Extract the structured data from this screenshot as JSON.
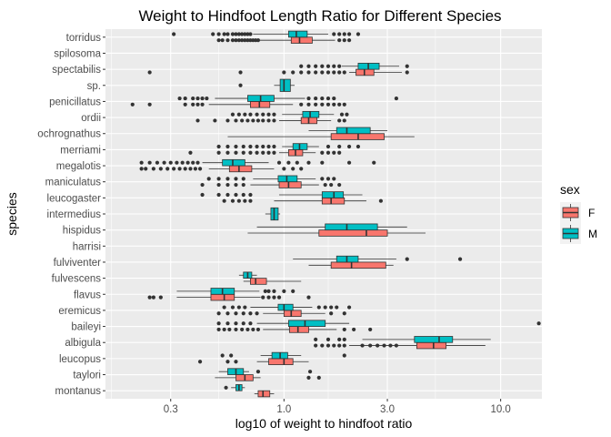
{
  "chart_data": {
    "type": "boxplot",
    "orientation": "horizontal",
    "title": "Weight to Hindfoot Length Ratio for Different Species",
    "xlabel": "log10 of weight to hindfoot ratio",
    "ylabel": "species",
    "x_scale": "log10",
    "xlim": [
      0.15,
      15.5
    ],
    "x_ticks": [
      0.3,
      1.0,
      3.0,
      10.0
    ],
    "x_tick_labels": [
      "0.3",
      "1.0",
      "3.0",
      "10.0"
    ],
    "grid": true,
    "legend": {
      "title": "sex",
      "position": "right"
    },
    "series": [
      {
        "name": "F",
        "color": "#F8766D"
      },
      {
        "name": "M",
        "color": "#00BFC4"
      }
    ],
    "categories": [
      "torridus",
      "spilosoma",
      "spectabilis",
      "sp.",
      "penicillatus",
      "ordii",
      "ochrognathus",
      "merriami",
      "megalotis",
      "maniculatus",
      "leucogaster",
      "intermedius",
      "hispidus",
      "harrisi",
      "fulviventer",
      "fulvescens",
      "flavus",
      "eremicus",
      "baileyi",
      "albigula",
      "leucopus",
      "taylori",
      "montanus"
    ],
    "boxes": [
      {
        "species": "torridus",
        "sex": "F",
        "lw": 0.75,
        "q1": 1.08,
        "med": 1.18,
        "q3": 1.35,
        "uw": 1.72,
        "out": [
          0.5,
          0.52,
          0.55,
          0.58,
          0.6,
          0.62,
          0.64,
          0.66,
          0.68,
          0.7,
          0.72,
          0.74,
          0.76,
          1.8,
          1.9,
          2.0
        ]
      },
      {
        "species": "torridus",
        "sex": "M",
        "lw": 0.72,
        "q1": 1.05,
        "med": 1.14,
        "q3": 1.28,
        "uw": 1.6,
        "out": [
          0.31,
          0.47,
          0.5,
          0.53,
          0.55,
          0.58,
          0.6,
          0.62,
          0.64,
          0.66,
          0.68,
          0.7,
          1.7,
          1.8,
          1.9,
          2.0,
          2.2
        ]
      },
      {
        "species": "spectabilis",
        "sex": "F",
        "lw": 2.0,
        "q1": 2.15,
        "med": 2.35,
        "q3": 2.6,
        "uw": 3.5,
        "out": [
          0.24,
          0.63,
          1.0,
          1.1,
          1.2,
          1.3,
          1.4,
          1.5,
          1.6,
          1.7,
          1.8,
          1.9,
          3.7
        ]
      },
      {
        "species": "spectabilis",
        "sex": "M",
        "lw": 1.85,
        "q1": 2.2,
        "med": 2.45,
        "q3": 2.75,
        "uw": 3.4,
        "out": [
          1.2,
          1.3,
          1.4,
          1.5,
          1.6,
          1.7,
          1.8,
          3.7
        ]
      },
      {
        "species": "sp.",
        "sex": "M",
        "lw": 0.9,
        "q1": 0.96,
        "med": 1.0,
        "q3": 1.07,
        "uw": 1.12,
        "out": [
          0.63
        ]
      },
      {
        "species": "penicillatus",
        "sex": "F",
        "lw": 0.45,
        "q1": 0.7,
        "med": 0.77,
        "q3": 0.86,
        "uw": 1.1,
        "out": [
          0.2,
          0.24,
          0.35,
          0.38,
          0.4,
          0.42,
          1.2,
          1.3,
          1.4,
          1.5,
          1.6,
          1.7,
          1.8,
          1.9
        ]
      },
      {
        "species": "penicillatus",
        "sex": "M",
        "lw": 0.48,
        "q1": 0.68,
        "med": 0.78,
        "q3": 0.9,
        "uw": 1.25,
        "out": [
          0.33,
          0.35,
          0.38,
          0.4,
          0.42,
          0.44,
          1.3,
          1.4,
          1.5,
          1.6,
          1.7,
          3.3
        ]
      },
      {
        "species": "ordii",
        "sex": "F",
        "lw": 0.95,
        "q1": 1.2,
        "med": 1.3,
        "q3": 1.42,
        "uw": 1.65,
        "out": [
          0.4,
          0.48,
          0.55,
          0.6,
          0.64,
          0.68,
          0.72,
          0.76,
          0.8,
          0.85,
          0.9,
          1.8,
          1.9
        ]
      },
      {
        "species": "ordii",
        "sex": "M",
        "lw": 0.98,
        "q1": 1.22,
        "med": 1.32,
        "q3": 1.45,
        "uw": 1.7,
        "out": [
          0.58,
          0.62,
          0.66,
          0.7,
          0.75,
          0.8,
          0.85,
          0.9,
          1.85,
          1.95
        ]
      },
      {
        "species": "ochrognathus",
        "sex": "F",
        "lw": 0.55,
        "q1": 1.65,
        "med": 2.2,
        "q3": 2.9,
        "uw": 4.0,
        "out": []
      },
      {
        "species": "ochrognathus",
        "sex": "M",
        "lw": 1.3,
        "q1": 1.75,
        "med": 1.95,
        "q3": 2.5,
        "uw": 3.0,
        "out": []
      },
      {
        "species": "merriami",
        "sex": "F",
        "lw": 0.95,
        "q1": 1.05,
        "med": 1.13,
        "q3": 1.22,
        "uw": 1.4,
        "out": [
          0.37,
          0.5,
          0.55,
          0.6,
          0.65,
          0.7,
          0.75,
          0.8,
          0.85,
          0.9,
          1.5,
          1.6,
          1.7,
          1.8
        ]
      },
      {
        "species": "merriami",
        "sex": "M",
        "lw": 0.98,
        "q1": 1.1,
        "med": 1.18,
        "q3": 1.28,
        "uw": 1.45,
        "out": [
          0.5,
          0.55,
          0.6,
          0.65,
          0.7,
          0.75,
          0.8,
          0.85,
          0.9,
          1.6,
          1.8,
          2.0,
          2.2
        ]
      },
      {
        "species": "megalotis",
        "sex": "F",
        "lw": 0.45,
        "q1": 0.56,
        "med": 0.62,
        "q3": 0.71,
        "uw": 0.9,
        "out": [
          0.22,
          0.23,
          0.25,
          0.27,
          0.29,
          0.31,
          0.33,
          0.35,
          0.37,
          0.39,
          0.41,
          1.0,
          1.1,
          1.2
        ]
      },
      {
        "species": "megalotis",
        "sex": "M",
        "lw": 0.42,
        "q1": 0.52,
        "med": 0.58,
        "q3": 0.66,
        "uw": 0.85,
        "out": [
          0.22,
          0.24,
          0.26,
          0.28,
          0.3,
          0.32,
          0.34,
          0.36,
          0.38,
          0.4,
          0.95,
          1.05,
          1.15,
          1.3,
          1.5,
          2.0,
          2.6
        ]
      },
      {
        "species": "maniculatus",
        "sex": "F",
        "lw": 0.7,
        "q1": 0.95,
        "med": 1.05,
        "q3": 1.2,
        "uw": 1.45,
        "out": [
          0.42,
          0.5,
          0.55,
          0.6,
          0.65,
          1.55,
          1.65,
          1.8
        ]
      },
      {
        "species": "maniculatus",
        "sex": "M",
        "lw": 0.72,
        "q1": 0.94,
        "med": 1.03,
        "q3": 1.15,
        "uw": 1.4,
        "out": [
          0.45,
          0.5,
          0.55,
          0.6,
          0.65,
          1.5,
          1.6,
          1.7
        ]
      },
      {
        "species": "leucogaster",
        "sex": "F",
        "lw": 0.9,
        "q1": 1.5,
        "med": 1.65,
        "q3": 1.9,
        "uw": 2.4,
        "out": [
          0.53,
          0.58,
          0.62,
          0.66,
          0.7,
          2.8
        ]
      },
      {
        "species": "leucogaster",
        "sex": "M",
        "lw": 0.95,
        "q1": 1.5,
        "med": 1.7,
        "q3": 1.88,
        "uw": 2.3,
        "out": [
          0.42,
          0.5,
          0.55,
          0.6,
          0.65,
          0.7
        ]
      },
      {
        "species": "intermedius",
        "sex": "M",
        "lw": 0.82,
        "q1": 0.87,
        "med": 0.9,
        "q3": 0.94,
        "uw": 0.96,
        "out": []
      },
      {
        "species": "hispidus",
        "sex": "F",
        "lw": 0.68,
        "q1": 1.45,
        "med": 2.4,
        "q3": 3.0,
        "uw": 4.5,
        "out": []
      },
      {
        "species": "hispidus",
        "sex": "M",
        "lw": 0.75,
        "q1": 1.55,
        "med": 1.95,
        "q3": 2.7,
        "uw": 3.7,
        "out": []
      },
      {
        "species": "fulviventer",
        "sex": "F",
        "lw": 1.3,
        "q1": 1.65,
        "med": 2.05,
        "q3": 2.95,
        "uw": 3.2,
        "out": []
      },
      {
        "species": "fulviventer",
        "sex": "M",
        "lw": 1.1,
        "q1": 1.75,
        "med": 1.95,
        "q3": 2.2,
        "uw": 3.3,
        "out": [
          3.7,
          6.5
        ]
      },
      {
        "species": "fulvescens",
        "sex": "F",
        "lw": 0.65,
        "q1": 0.7,
        "med": 0.74,
        "q3": 0.83,
        "uw": 1.2,
        "out": []
      },
      {
        "species": "fulvescens",
        "sex": "M",
        "lw": 0.62,
        "q1": 0.65,
        "med": 0.68,
        "q3": 0.71,
        "uw": 0.75,
        "out": []
      },
      {
        "species": "flavus",
        "sex": "F",
        "lw": 0.32,
        "q1": 0.46,
        "med": 0.53,
        "q3": 0.59,
        "uw": 0.78,
        "out": [
          0.24,
          0.25,
          0.27,
          0.8,
          0.85,
          0.9,
          0.95,
          1.3
        ]
      },
      {
        "species": "flavus",
        "sex": "M",
        "lw": 0.32,
        "q1": 0.46,
        "med": 0.52,
        "q3": 0.59,
        "uw": 0.77,
        "out": [
          0.82,
          0.85,
          0.9,
          1.0,
          1.1
        ]
      },
      {
        "species": "eremicus",
        "sex": "F",
        "lw": 0.8,
        "q1": 1.0,
        "med": 1.08,
        "q3": 1.2,
        "uw": 1.55,
        "out": [
          0.5,
          0.55,
          0.6,
          0.65,
          0.7,
          0.75,
          1.65,
          1.9
        ]
      },
      {
        "species": "eremicus",
        "sex": "M",
        "lw": 0.7,
        "q1": 0.94,
        "med": 1.0,
        "q3": 1.1,
        "uw": 1.35,
        "out": [
          0.53,
          0.58,
          0.62,
          0.66,
          1.45,
          1.55,
          1.65,
          1.75,
          2.0
        ]
      },
      {
        "species": "baileyi",
        "sex": "F",
        "lw": 0.8,
        "q1": 1.06,
        "med": 1.16,
        "q3": 1.3,
        "uw": 1.75,
        "out": [
          0.5,
          0.53,
          0.56,
          0.6,
          0.64,
          0.68,
          0.72,
          0.76,
          1.9,
          2.1,
          2.5
        ]
      },
      {
        "species": "baileyi",
        "sex": "M",
        "lw": 0.75,
        "q1": 1.05,
        "med": 1.25,
        "q3": 1.55,
        "uw": 2.0,
        "out": [
          0.5,
          0.55,
          0.6,
          0.65,
          0.7,
          15.0
        ]
      },
      {
        "species": "albigula",
        "sex": "F",
        "lw": 2.0,
        "q1": 4.1,
        "med": 4.9,
        "q3": 5.6,
        "uw": 8.5,
        "out": [
          1.4,
          1.5,
          1.6,
          1.7,
          1.8,
          1.9,
          2.3,
          2.5,
          2.7,
          2.9,
          3.1,
          3.3
        ]
      },
      {
        "species": "albigula",
        "sex": "M",
        "lw": 2.3,
        "q1": 4.0,
        "med": 5.2,
        "q3": 6.0,
        "uw": 9.0,
        "out": [
          1.4,
          1.6,
          1.8,
          1.9
        ]
      },
      {
        "species": "leucopus",
        "sex": "F",
        "lw": 0.75,
        "q1": 0.85,
        "med": 1.0,
        "q3": 1.1,
        "uw": 1.3,
        "out": [
          0.41,
          0.55,
          0.6
        ]
      },
      {
        "species": "leucopus",
        "sex": "M",
        "lw": 0.78,
        "q1": 0.88,
        "med": 0.96,
        "q3": 1.04,
        "uw": 1.2,
        "out": [
          0.52,
          0.57,
          1.9
        ]
      },
      {
        "species": "taylori",
        "sex": "F",
        "lw": 0.48,
        "q1": 0.6,
        "med": 0.66,
        "q3": 0.72,
        "uw": 0.78,
        "out": [
          1.3,
          1.45
        ]
      },
      {
        "species": "taylori",
        "sex": "M",
        "lw": 0.5,
        "q1": 0.55,
        "med": 0.6,
        "q3": 0.65,
        "uw": 0.69,
        "out": [
          0.76,
          1.32
        ]
      },
      {
        "species": "montanus",
        "sex": "F",
        "lw": 0.73,
        "q1": 0.76,
        "med": 0.8,
        "q3": 0.86,
        "uw": 0.9,
        "out": []
      },
      {
        "species": "montanus",
        "sex": "M",
        "lw": 0.57,
        "q1": 0.6,
        "med": 0.62,
        "q3": 0.64,
        "uw": 0.66,
        "out": [
          0.54
        ]
      }
    ]
  }
}
